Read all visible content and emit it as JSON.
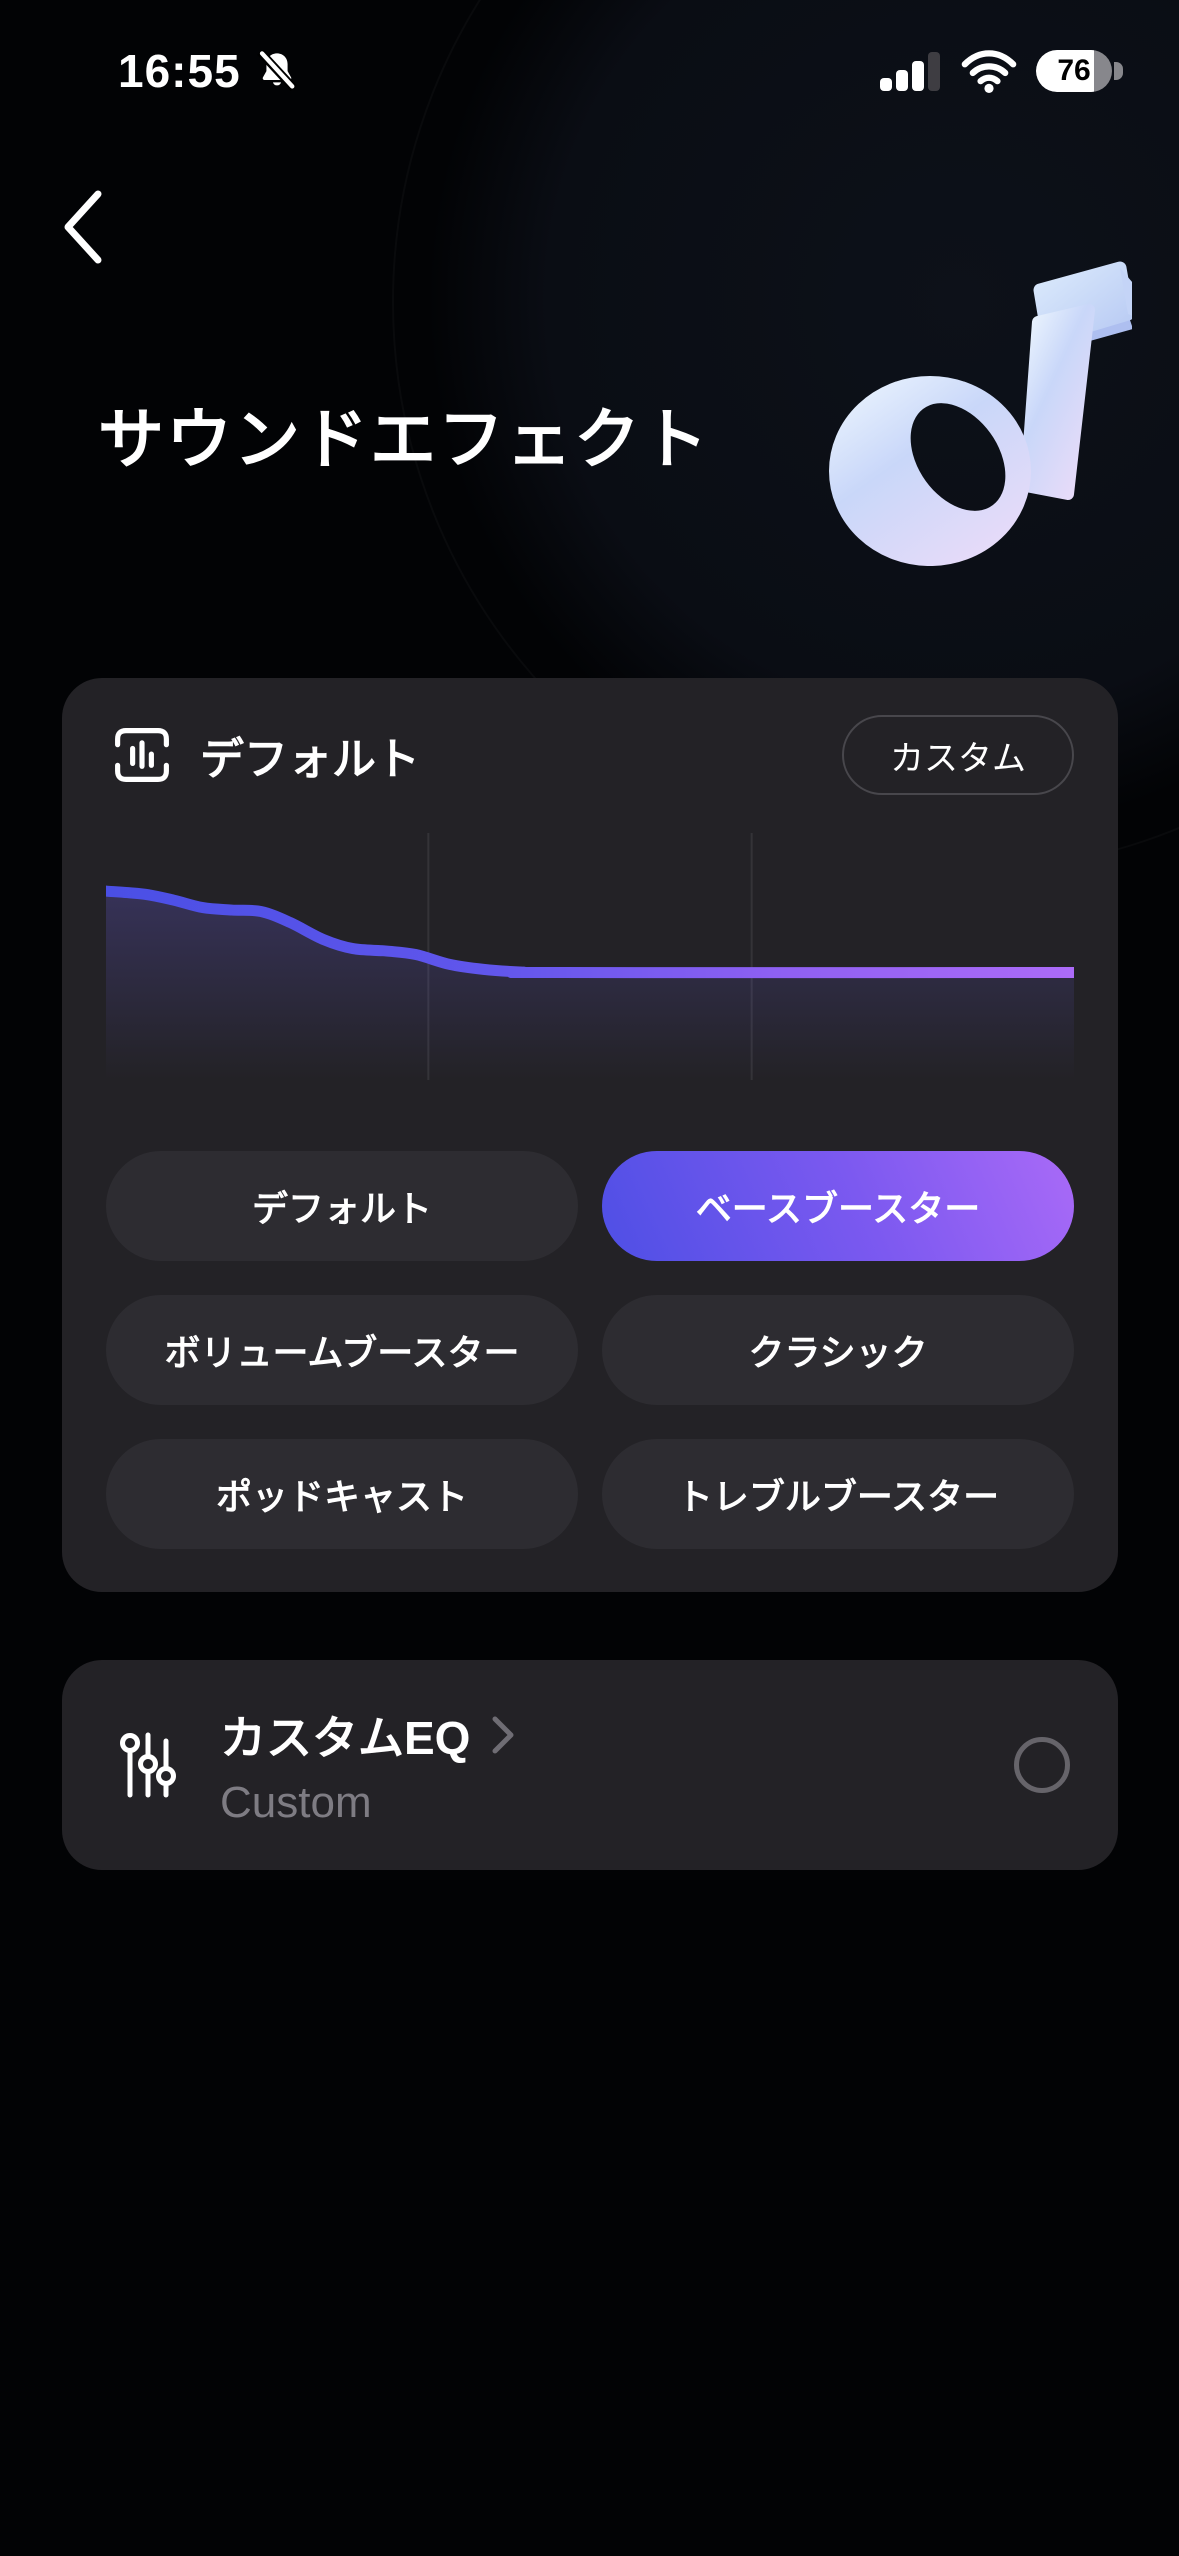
{
  "status_bar": {
    "time": "16:55",
    "battery_percent": "76",
    "icons": [
      "notifications-off",
      "cellular-signal-3-of-4",
      "wifi-full",
      "battery-76"
    ]
  },
  "nav": {
    "back_icon": "chevron-left"
  },
  "header": {
    "title": "サウンドエフェクト",
    "art": "3d-music-note"
  },
  "preset_card": {
    "header": {
      "icon": "eq-levels-frame",
      "label": "デフォルト",
      "custom_button_label": "カスタム"
    },
    "presets": [
      {
        "label": "デフォルト",
        "selected": false
      },
      {
        "label": "ベースブースター",
        "selected": true
      },
      {
        "label": "ボリュームブースター",
        "selected": false
      },
      {
        "label": "クラシック",
        "selected": false
      },
      {
        "label": "ポッドキャスト",
        "selected": false
      },
      {
        "label": "トレブルブースター",
        "selected": false
      }
    ],
    "chart_data": {
      "type": "area",
      "title": "EQ curve (bass booster)",
      "x_axis": "frequency bands (left=low, right=high)",
      "y_axis": "gain (normalized from top of plot)",
      "points": [
        [
          0,
          0.235
        ],
        [
          0.04,
          0.248
        ],
        [
          0.07,
          0.272
        ],
        [
          0.1,
          0.302
        ],
        [
          0.13,
          0.312
        ],
        [
          0.16,
          0.318
        ],
        [
          0.19,
          0.362
        ],
        [
          0.225,
          0.432
        ],
        [
          0.255,
          0.468
        ],
        [
          0.29,
          0.478
        ],
        [
          0.32,
          0.492
        ],
        [
          0.355,
          0.532
        ],
        [
          0.39,
          0.552
        ],
        [
          0.43,
          0.563
        ],
        [
          0.47,
          0.565
        ],
        [
          1,
          0.565
        ]
      ],
      "gridlines_x": [
        0.333,
        0.667
      ],
      "grid": "two faint vertical lines",
      "line_gradient": [
        "#4A4FE5",
        "#6156EC",
        "#8F60F2",
        "#AC6BF8"
      ],
      "fill_gradient": [
        "rgba(110,96,232,0.26)",
        "rgba(110,96,232,0)"
      ]
    }
  },
  "custom_eq_card": {
    "icon": "vertical-faders",
    "title": "カスタムEQ",
    "chevron_icon": "chevron-right",
    "subtitle": "Custom",
    "radio_selected": false
  },
  "colors": {
    "background": "#020305",
    "card": "#232226",
    "pill": "#2d2c31",
    "accent_blue": "#4e4fe5",
    "accent_purple": "#a96af7",
    "muted_text": "#7e7c83",
    "status_gray": "#87878c"
  }
}
